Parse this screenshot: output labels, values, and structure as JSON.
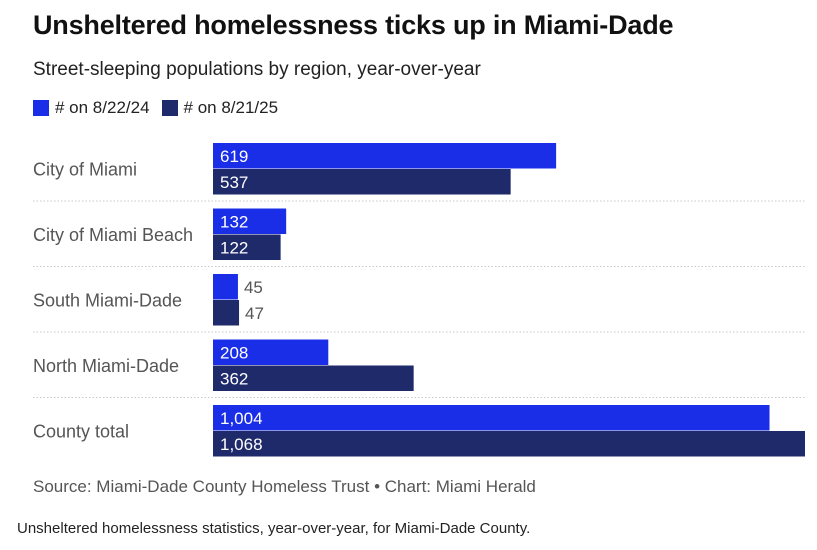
{
  "title": "Unsheltered homelessness ticks up in Miami-Dade",
  "subtitle": "Street-sleeping populations by region, year-over-year",
  "source": "Source: Miami-Dade County Homeless Trust • Chart: Miami Herald",
  "caption": "Unsheltered homelessness statistics, year-over-year, for Miami-Dade County.",
  "colors": {
    "series_2024": "#1a2ee8",
    "series_2025": "#1f2a6b",
    "gridline": "#c8c8c8",
    "category_text": "#555555"
  },
  "chart_data": {
    "type": "bar",
    "orientation": "horizontal",
    "categories": [
      "City of Miami",
      "City of Miami Beach",
      "South Miami-Dade",
      "North Miami-Dade",
      "County total"
    ],
    "series": [
      {
        "name": "# on 8/22/24",
        "values": [
          619,
          132,
          45,
          208,
          1004
        ],
        "labels": [
          "619",
          "132",
          "45",
          "208",
          "1,004"
        ]
      },
      {
        "name": "# on 8/21/25",
        "values": [
          537,
          122,
          47,
          362,
          1068
        ],
        "labels": [
          "537",
          "122",
          "47",
          "362",
          "1,068"
        ]
      }
    ],
    "xlim": [
      0,
      1068
    ],
    "legend_position": "top-left"
  }
}
